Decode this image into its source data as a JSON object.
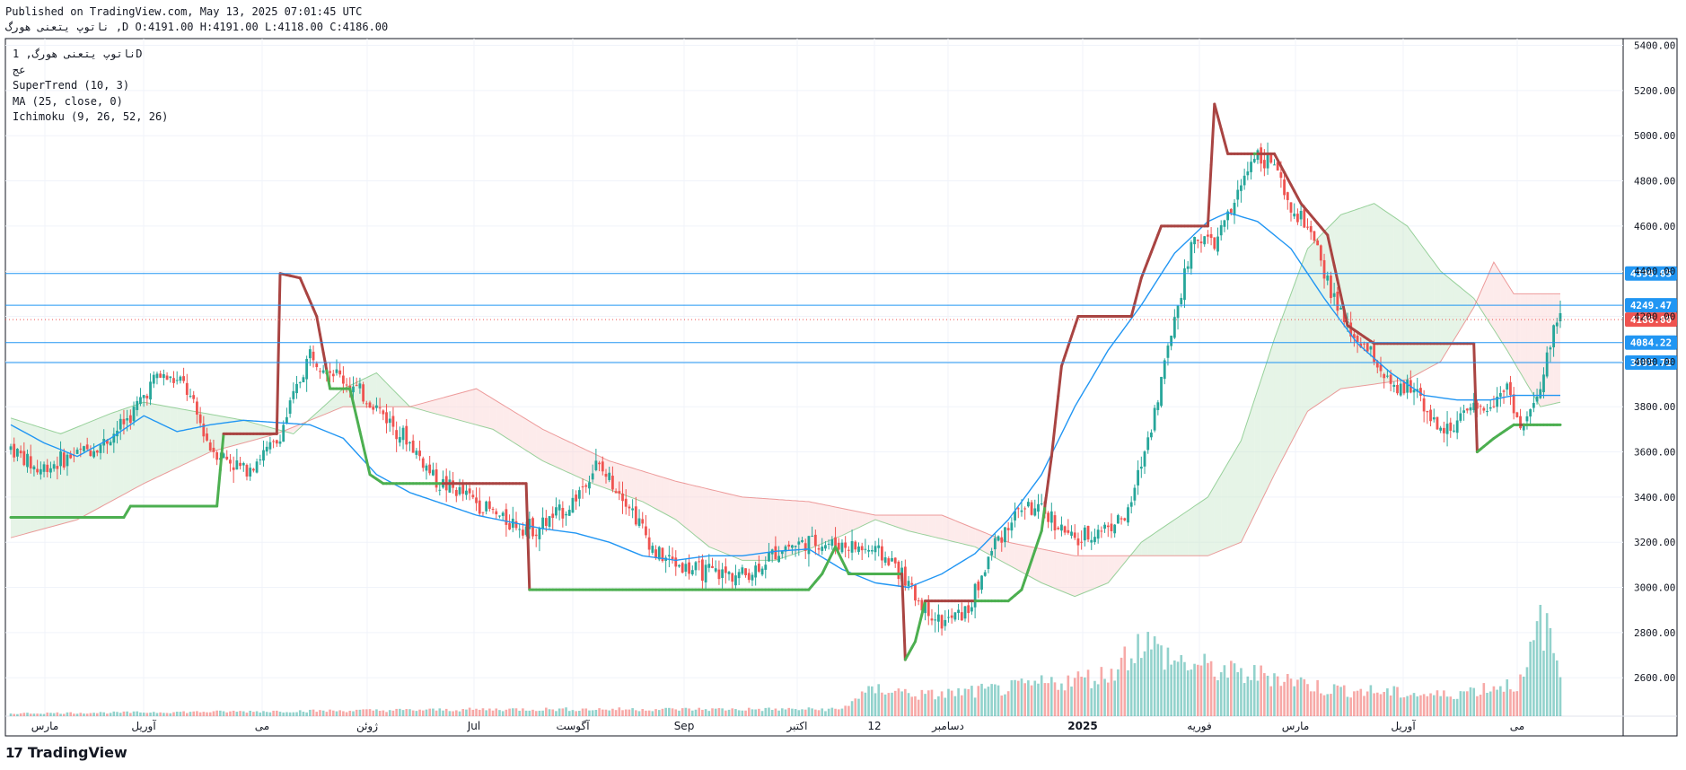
{
  "header": {
    "published": "Published on TradingView.com, May 13, 2025 07:01:45 UTC",
    "symbol_line": "ناتوپ یتعنی هورگ ,D O:4191.00 H:4191.00 L:4118.00 C:4186.00"
  },
  "legend": {
    "symbol": "ناتوپ یتعنی هورگ, 1D",
    "exchange": "عج",
    "indicators": [
      "SuperTrend (10, 3)",
      "MA (25, close, 0)",
      "Ichimoku (9, 26, 52, 26)"
    ]
  },
  "brand": {
    "logo": "17",
    "name": "TradingView"
  },
  "colors": {
    "up": "#26a69a",
    "down": "#ef5350",
    "supertrend_up": "#4caf50",
    "supertrend_down": "#a94442",
    "ma": "#2196f3",
    "horizontal_line": "#2196f3",
    "cloud_bull": "#c8e6c9",
    "cloud_bear": "#fbd3d3"
  },
  "chart_data": {
    "type": "candlestick",
    "timeframe": "1D",
    "y_axis": {
      "ticks": [
        2600,
        2800,
        3000,
        3200,
        3400,
        3600,
        3800,
        4000,
        4200,
        4400,
        4600,
        4800,
        5000,
        5200,
        5400
      ],
      "range": [
        2430,
        5430
      ]
    },
    "x_axis": {
      "ticks": [
        "مارس",
        "آوریل",
        "می",
        "ژوئن",
        "Jul",
        "آگوست",
        "Sep",
        "اکتبر",
        "12",
        "دسامبر",
        "2025",
        "فوریه",
        "مارس",
        "آوریل",
        "می"
      ]
    },
    "price_labels": [
      {
        "value": 4390.05,
        "label": "4390.05",
        "kind": "line"
      },
      {
        "value": 4249.47,
        "label": "4249.47",
        "kind": "line"
      },
      {
        "value": 4186.0,
        "label": "4186.00",
        "kind": "last"
      },
      {
        "value": 4084.22,
        "label": "4084.22",
        "kind": "line"
      },
      {
        "value": 3995.72,
        "label": "3995.72",
        "kind": "line"
      }
    ],
    "close_anchors": [
      [
        0,
        3620
      ],
      [
        8,
        3520
      ],
      [
        18,
        3580
      ],
      [
        28,
        3640
      ],
      [
        36,
        3760
      ],
      [
        44,
        3940
      ],
      [
        52,
        3900
      ],
      [
        60,
        3620
      ],
      [
        70,
        3520
      ],
      [
        80,
        3640
      ],
      [
        90,
        4040
      ],
      [
        100,
        3920
      ],
      [
        110,
        3800
      ],
      [
        120,
        3640
      ],
      [
        128,
        3470
      ],
      [
        138,
        3400
      ],
      [
        148,
        3300
      ],
      [
        158,
        3260
      ],
      [
        168,
        3360
      ],
      [
        176,
        3540
      ],
      [
        184,
        3420
      ],
      [
        194,
        3150
      ],
      [
        204,
        3080
      ],
      [
        214,
        3060
      ],
      [
        222,
        3060
      ],
      [
        232,
        3180
      ],
      [
        240,
        3200
      ],
      [
        250,
        3190
      ],
      [
        260,
        3160
      ],
      [
        266,
        3100
      ],
      [
        272,
        2960
      ],
      [
        280,
        2840
      ],
      [
        288,
        2900
      ],
      [
        296,
        3200
      ],
      [
        304,
        3360
      ],
      [
        312,
        3320
      ],
      [
        320,
        3200
      ],
      [
        328,
        3260
      ],
      [
        336,
        3320
      ],
      [
        344,
        3780
      ],
      [
        350,
        4200
      ],
      [
        356,
        4560
      ],
      [
        362,
        4520
      ],
      [
        368,
        4700
      ],
      [
        374,
        4930
      ],
      [
        380,
        4870
      ],
      [
        384,
        4680
      ],
      [
        390,
        4600
      ],
      [
        396,
        4350
      ],
      [
        402,
        4140
      ],
      [
        410,
        4020
      ],
      [
        416,
        3860
      ],
      [
        422,
        3900
      ],
      [
        430,
        3680
      ],
      [
        436,
        3750
      ],
      [
        444,
        3800
      ],
      [
        450,
        3900
      ],
      [
        454,
        3700
      ],
      [
        460,
        3860
      ],
      [
        464,
        4170
      ],
      [
        466,
        4186
      ]
    ],
    "volume_scale_note": "volume bars shown as relative heights 0-1",
    "volume_anchors": [
      [
        0,
        0.02
      ],
      [
        150,
        0.05
      ],
      [
        250,
        0.05
      ],
      [
        255,
        0.15
      ],
      [
        262,
        0.2
      ],
      [
        275,
        0.15
      ],
      [
        300,
        0.2
      ],
      [
        330,
        0.3
      ],
      [
        340,
        0.55
      ],
      [
        350,
        0.4
      ],
      [
        370,
        0.3
      ],
      [
        380,
        0.3
      ],
      [
        395,
        0.2
      ],
      [
        430,
        0.15
      ],
      [
        455,
        0.25
      ],
      [
        460,
        0.7
      ],
      [
        463,
        0.55
      ],
      [
        466,
        0.3
      ]
    ],
    "supertrend": [
      [
        0,
        3310
      ],
      [
        34,
        3310
      ],
      [
        36,
        3360
      ],
      [
        62,
        3360
      ],
      [
        64,
        3680
      ],
      [
        80,
        3680
      ],
      [
        81,
        4390
      ],
      [
        87,
        4370
      ],
      [
        92,
        4200
      ],
      [
        96,
        3880
      ],
      [
        102,
        3880
      ],
      [
        108,
        3500
      ],
      [
        112,
        3460
      ],
      [
        128,
        3460
      ],
      [
        155,
        3460
      ],
      [
        156,
        2990
      ],
      [
        240,
        2990
      ],
      [
        244,
        3060
      ],
      [
        248,
        3180
      ],
      [
        252,
        3060
      ],
      [
        268,
        3060
      ],
      [
        269,
        2680
      ],
      [
        272,
        2760
      ],
      [
        275,
        2940
      ],
      [
        300,
        2940
      ],
      [
        304,
        2990
      ],
      [
        310,
        3250
      ],
      [
        313,
        3580
      ],
      [
        316,
        3980
      ],
      [
        321,
        4200
      ],
      [
        337,
        4200
      ],
      [
        340,
        4370
      ],
      [
        346,
        4600
      ],
      [
        360,
        4600
      ],
      [
        362,
        5140
      ],
      [
        366,
        4920
      ],
      [
        380,
        4920
      ],
      [
        388,
        4700
      ],
      [
        396,
        4560
      ],
      [
        402,
        4160
      ],
      [
        410,
        4080
      ],
      [
        440,
        4080
      ],
      [
        441,
        3600
      ],
      [
        446,
        3660
      ],
      [
        452,
        3720
      ]
    ],
    "ma": [
      [
        0,
        3720
      ],
      [
        10,
        3640
      ],
      [
        20,
        3580
      ],
      [
        30,
        3660
      ],
      [
        40,
        3760
      ],
      [
        50,
        3690
      ],
      [
        60,
        3720
      ],
      [
        70,
        3740
      ],
      [
        80,
        3730
      ],
      [
        90,
        3720
      ],
      [
        100,
        3660
      ],
      [
        110,
        3500
      ],
      [
        120,
        3420
      ],
      [
        130,
        3370
      ],
      [
        140,
        3320
      ],
      [
        150,
        3290
      ],
      [
        160,
        3260
      ],
      [
        170,
        3240
      ],
      [
        180,
        3200
      ],
      [
        190,
        3140
      ],
      [
        200,
        3120
      ],
      [
        210,
        3140
      ],
      [
        220,
        3140
      ],
      [
        230,
        3160
      ],
      [
        240,
        3170
      ],
      [
        250,
        3080
      ],
      [
        260,
        3020
      ],
      [
        270,
        3000
      ],
      [
        280,
        3060
      ],
      [
        290,
        3150
      ],
      [
        300,
        3300
      ],
      [
        310,
        3500
      ],
      [
        320,
        3800
      ],
      [
        330,
        4050
      ],
      [
        340,
        4250
      ],
      [
        350,
        4480
      ],
      [
        360,
        4620
      ],
      [
        366,
        4660
      ],
      [
        375,
        4620
      ],
      [
        385,
        4500
      ],
      [
        395,
        4280
      ],
      [
        405,
        4080
      ],
      [
        415,
        3950
      ],
      [
        425,
        3850
      ],
      [
        435,
        3830
      ],
      [
        445,
        3830
      ],
      [
        452,
        3850
      ]
    ],
    "senkou_a": [
      [
        0,
        3750
      ],
      [
        15,
        3680
      ],
      [
        30,
        3770
      ],
      [
        40,
        3820
      ],
      [
        55,
        3780
      ],
      [
        70,
        3740
      ],
      [
        85,
        3680
      ],
      [
        100,
        3880
      ],
      [
        110,
        3950
      ],
      [
        120,
        3800
      ],
      [
        130,
        3760
      ],
      [
        145,
        3700
      ],
      [
        160,
        3560
      ],
      [
        175,
        3460
      ],
      [
        190,
        3380
      ],
      [
        200,
        3300
      ],
      [
        210,
        3180
      ],
      [
        220,
        3120
      ],
      [
        230,
        3120
      ],
      [
        240,
        3170
      ],
      [
        250,
        3230
      ],
      [
        260,
        3300
      ],
      [
        270,
        3250
      ],
      [
        290,
        3180
      ],
      [
        300,
        3100
      ],
      [
        310,
        3020
      ],
      [
        320,
        2960
      ],
      [
        330,
        3020
      ],
      [
        340,
        3200
      ],
      [
        350,
        3300
      ],
      [
        360,
        3400
      ],
      [
        370,
        3650
      ],
      [
        380,
        4100
      ],
      [
        390,
        4500
      ],
      [
        400,
        4650
      ],
      [
        410,
        4700
      ],
      [
        420,
        4600
      ],
      [
        430,
        4400
      ],
      [
        440,
        4280
      ],
      [
        450,
        4050
      ],
      [
        460,
        3800
      ],
      [
        466,
        3820
      ]
    ],
    "senkou_b": [
      [
        0,
        3220
      ],
      [
        20,
        3300
      ],
      [
        40,
        3460
      ],
      [
        60,
        3600
      ],
      [
        80,
        3680
      ],
      [
        100,
        3800
      ],
      [
        120,
        3800
      ],
      [
        140,
        3880
      ],
      [
        160,
        3700
      ],
      [
        180,
        3560
      ],
      [
        200,
        3470
      ],
      [
        220,
        3400
      ],
      [
        240,
        3380
      ],
      [
        260,
        3320
      ],
      [
        280,
        3320
      ],
      [
        300,
        3200
      ],
      [
        320,
        3140
      ],
      [
        340,
        3140
      ],
      [
        360,
        3140
      ],
      [
        370,
        3200
      ],
      [
        380,
        3500
      ],
      [
        390,
        3780
      ],
      [
        400,
        3880
      ],
      [
        420,
        3920
      ],
      [
        430,
        4000
      ],
      [
        440,
        4240
      ],
      [
        446,
        4440
      ],
      [
        452,
        4300
      ],
      [
        466,
        4300
      ]
    ]
  }
}
